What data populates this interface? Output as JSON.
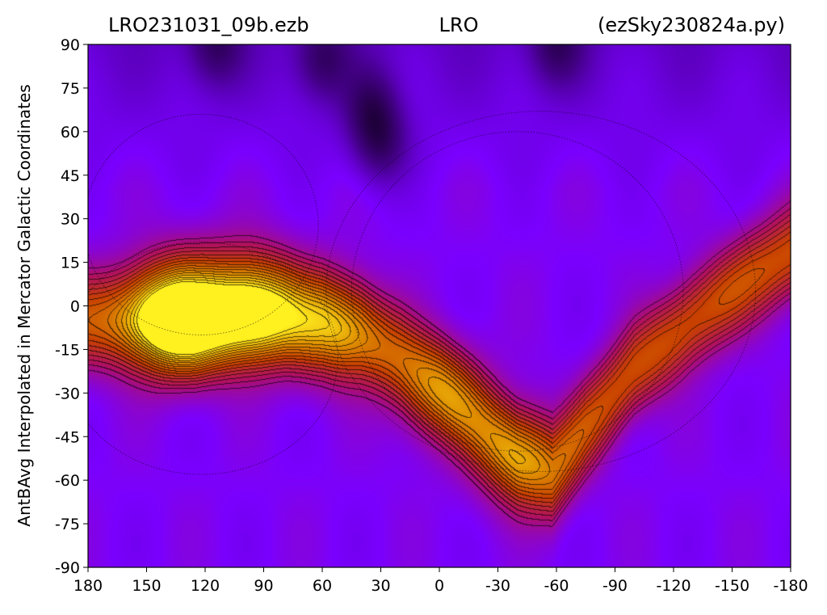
{
  "chart_data": {
    "type": "heatmap",
    "title_left": "LRO231031_09b.ezb",
    "title_center": "LRO",
    "title_right": "(ezSky230824a.py)",
    "xlabel": "",
    "ylabel": "AntBAvg Interpolated in Mercator Galactic Coordinates",
    "xlim": [
      180,
      -180
    ],
    "ylim": [
      -90,
      90
    ],
    "x_ticks": [
      {
        "value": 180,
        "label": "180"
      },
      {
        "value": 150,
        "label": "150"
      },
      {
        "value": 120,
        "label": "120"
      },
      {
        "value": 90,
        "label": "90"
      },
      {
        "value": 60,
        "label": "60"
      },
      {
        "value": 30,
        "label": "30"
      },
      {
        "value": 0,
        "label": "0"
      },
      {
        "value": -30,
        "label": "-30"
      },
      {
        "value": -60,
        "label": "-60"
      },
      {
        "value": -90,
        "label": "-90"
      },
      {
        "value": -120,
        "label": "-120"
      },
      {
        "value": -150,
        "label": "-150"
      },
      {
        "value": -180,
        "label": "-180"
      }
    ],
    "y_ticks": [
      {
        "value": 90,
        "label": "90"
      },
      {
        "value": 75,
        "label": "75"
      },
      {
        "value": 60,
        "label": "60"
      },
      {
        "value": 45,
        "label": "45"
      },
      {
        "value": 30,
        "label": "30"
      },
      {
        "value": 15,
        "label": "15"
      },
      {
        "value": 0,
        "label": "0"
      },
      {
        "value": -15,
        "label": "-15"
      },
      {
        "value": -30,
        "label": "-30"
      },
      {
        "value": -45,
        "label": "-45"
      },
      {
        "value": -60,
        "label": "-60"
      },
      {
        "value": -75,
        "label": "-75"
      },
      {
        "value": -90,
        "label": "-90"
      }
    ],
    "colormap": [
      "#1a0030",
      "#45008a",
      "#7a00ff",
      "#b01060",
      "#c84000",
      "#e09000",
      "#fff020"
    ],
    "bright_band_path": [
      [
        180,
        -5
      ],
      [
        150,
        -5
      ],
      [
        125,
        -8
      ],
      [
        100,
        -5
      ],
      [
        80,
        -4
      ],
      [
        60,
        -5
      ],
      [
        40,
        -10
      ],
      [
        20,
        -18
      ],
      [
        0,
        -28
      ],
      [
        -20,
        -40
      ],
      [
        -40,
        -52
      ],
      [
        -58,
        -58
      ],
      [
        -75,
        -42
      ],
      [
        -100,
        -22
      ],
      [
        -130,
        -5
      ],
      [
        -160,
        10
      ],
      [
        -180,
        18
      ]
    ],
    "bright_peaks": [
      {
        "lon": 125,
        "lat": 0,
        "level": 0.9
      },
      {
        "lon": 140,
        "lat": -5,
        "level": 0.95
      },
      {
        "lon": 95,
        "lat": 0,
        "level": 1.0
      },
      {
        "lon": 55,
        "lat": -8,
        "level": 0.78
      },
      {
        "lon": 0,
        "lat": -30,
        "level": 0.72
      },
      {
        "lon": -40,
        "lat": -52,
        "level": 0.75
      }
    ],
    "dark_spots": [
      {
        "lon": 35,
        "lat": 68
      },
      {
        "lon": 30,
        "lat": 55
      },
      {
        "lon": 60,
        "lat": 85
      },
      {
        "lon": -60,
        "lat": 90
      },
      {
        "lon": 115,
        "lat": 90
      }
    ],
    "overlay_circles": [
      {
        "center_lon": 122,
        "center_lat": 28,
        "radius_lon": 60,
        "radius_lat": 38
      },
      {
        "center_lon": 122,
        "center_lat": -18,
        "radius_lon": 70,
        "radius_lat": 40
      },
      {
        "center_lon": -52,
        "center_lat": 5,
        "radius_lon": 110,
        "radius_lat": 62
      },
      {
        "center_lon": -40,
        "center_lat": 5,
        "radius_lon": 85,
        "radius_lat": 55
      }
    ],
    "grid": false,
    "legend": "none"
  }
}
